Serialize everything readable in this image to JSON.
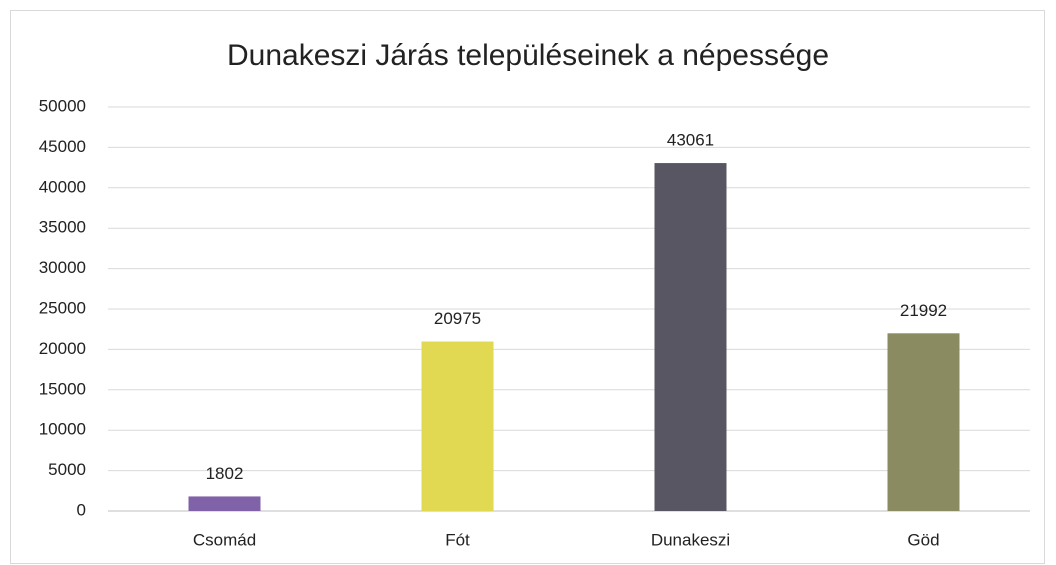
{
  "chart_data": {
    "type": "bar",
    "title": "Dunakeszi Járás településeinek a népessége",
    "categories": [
      "Csomád",
      "Fót",
      "Dunakeszi",
      "Göd"
    ],
    "values": [
      1802,
      20975,
      43061,
      21992
    ],
    "colors": [
      "#7f62a8",
      "#e2d952",
      "#595663",
      "#8b8b62"
    ],
    "ylim": [
      0,
      50000
    ],
    "yticks": [
      0,
      5000,
      10000,
      15000,
      20000,
      25000,
      30000,
      35000,
      40000,
      45000,
      50000
    ],
    "grid": true
  }
}
